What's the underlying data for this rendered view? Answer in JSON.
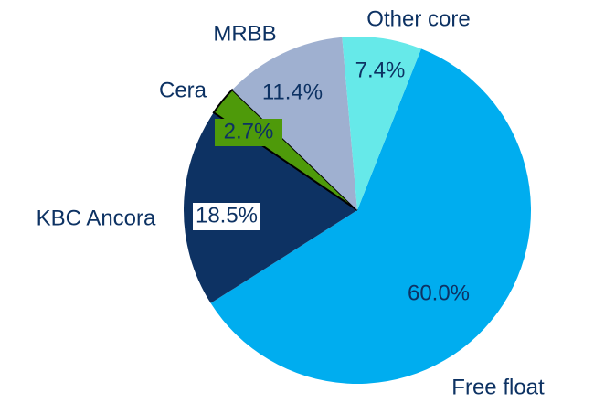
{
  "chart_data": {
    "type": "pie",
    "categories": [
      "Free float",
      "KBC Ancora",
      "Cera",
      "MRBB",
      "Other core"
    ],
    "values": [
      60.0,
      18.5,
      2.7,
      11.4,
      7.4
    ],
    "value_labels": [
      "60.0%",
      "18.5%",
      "2.7%",
      "11.4%",
      "7.4%"
    ],
    "colors": [
      "#00adef",
      "#0d3263",
      "#4e9a0a",
      "#9fb0d0",
      "#66e9e9"
    ]
  }
}
